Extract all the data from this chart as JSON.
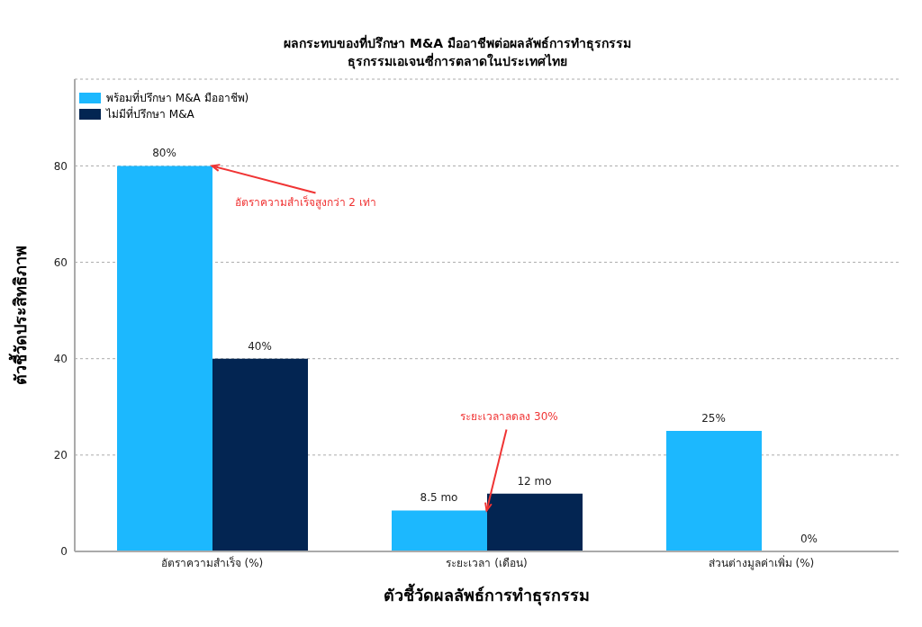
{
  "chart_data": {
    "type": "bar",
    "title": "ผลกระทบของที่ปรึกษา M&A มืออาชีพต่อผลลัพธ์การทำธุรกรรม",
    "subtitle": "ธุรกรรมเอเจนซี่การตลาดในประเทศไทย",
    "xlabel": "ตัวชี้วัดผลลัพธ์การทำธุรกรรม",
    "ylabel": "ตัวชี้วัดประสิทธิภาพ",
    "categories": [
      "อัตราความสำเร็จ (%)",
      "ระยะเวลา (เดือน)",
      "ส่วนต่างมูลค่าเพิ่ม (%)"
    ],
    "series": [
      {
        "name": "พร้อมที่ปรึกษา M&A มืออาชีพ)",
        "color": "#1cb8fe",
        "values": [
          80,
          8.5,
          25
        ],
        "value_labels": [
          "80%",
          "8.5 mo",
          "25%"
        ]
      },
      {
        "name": "ไม่มีที่ปรึกษา M&A",
        "color": "#032552",
        "values": [
          40,
          12,
          0
        ],
        "value_labels": [
          "40%",
          "12 mo",
          "0%"
        ]
      }
    ],
    "ylim": [
      0,
      98
    ],
    "yticks": [
      0,
      20,
      40,
      60,
      80
    ],
    "grid": "y",
    "legend": "top left",
    "annotations": [
      {
        "text": "อัตราความสำเร็จสูงกว่า 2 เท่า",
        "x": "อัตราความสำเร็จ (%)",
        "y": 80
      },
      {
        "text": "ระยะเวลาลดลง 30%",
        "x": "ระยะเวลา (เดือน)",
        "y": 8.5
      }
    ]
  }
}
